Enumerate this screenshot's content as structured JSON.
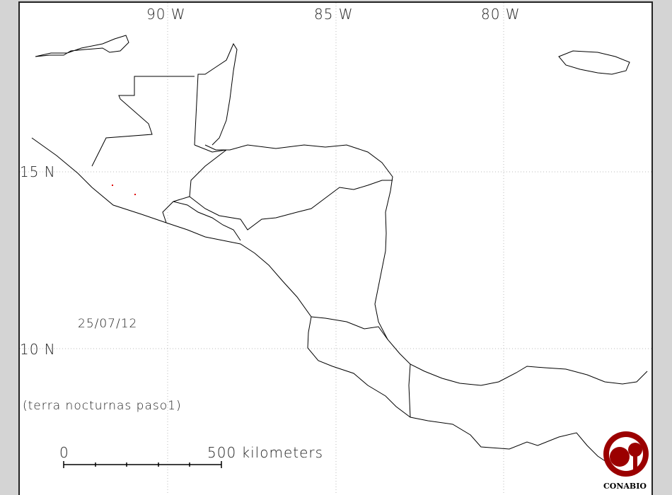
{
  "map": {
    "longitude_labels": [
      "90 W",
      "85 W",
      "80 W"
    ],
    "latitude_labels": [
      "15 N",
      "10 N"
    ],
    "date": "25/07/12",
    "product": "(terra nocturnas paso1)",
    "scale_bar": {
      "start_label": "0",
      "end_label": "500 kilometers"
    },
    "logo": "CONABIO",
    "colors": {
      "coastline": "#000000",
      "hotspot": "#e00000",
      "logo": "#9b0000",
      "background": "#d4d4d4"
    },
    "hotspots": [
      {
        "lon": -91.6,
        "lat": 14.6
      },
      {
        "lon": -90.9,
        "lat": 14.35
      }
    ]
  }
}
